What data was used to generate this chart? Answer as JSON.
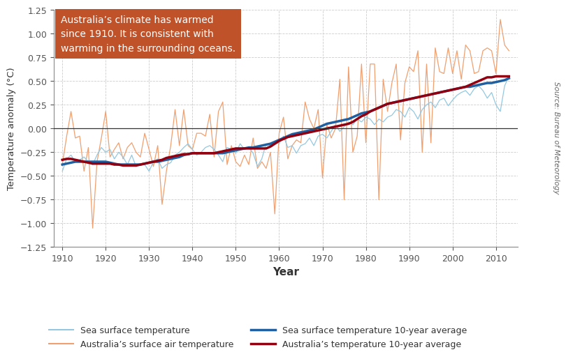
{
  "years": [
    1910,
    1911,
    1912,
    1913,
    1914,
    1915,
    1916,
    1917,
    1918,
    1919,
    1920,
    1921,
    1922,
    1923,
    1924,
    1925,
    1926,
    1927,
    1928,
    1929,
    1930,
    1931,
    1932,
    1933,
    1934,
    1935,
    1936,
    1937,
    1938,
    1939,
    1940,
    1941,
    1942,
    1943,
    1944,
    1945,
    1946,
    1947,
    1948,
    1949,
    1950,
    1951,
    1952,
    1953,
    1954,
    1955,
    1956,
    1957,
    1958,
    1959,
    1960,
    1961,
    1962,
    1963,
    1964,
    1965,
    1966,
    1967,
    1968,
    1969,
    1970,
    1971,
    1972,
    1973,
    1974,
    1975,
    1976,
    1977,
    1978,
    1979,
    1980,
    1981,
    1982,
    1983,
    1984,
    1985,
    1986,
    1987,
    1988,
    1989,
    1990,
    1991,
    1992,
    1993,
    1994,
    1995,
    1996,
    1997,
    1998,
    1999,
    2000,
    2001,
    2002,
    2003,
    2004,
    2005,
    2006,
    2007,
    2008,
    2009,
    2010,
    2011,
    2012,
    2013
  ],
  "sst": [
    -0.45,
    -0.32,
    -0.28,
    -0.35,
    -0.33,
    -0.3,
    -0.35,
    -0.38,
    -0.28,
    -0.2,
    -0.25,
    -0.22,
    -0.32,
    -0.25,
    -0.3,
    -0.38,
    -0.28,
    -0.4,
    -0.38,
    -0.38,
    -0.45,
    -0.35,
    -0.32,
    -0.42,
    -0.38,
    -0.36,
    -0.28,
    -0.25,
    -0.2,
    -0.16,
    -0.22,
    -0.28,
    -0.25,
    -0.2,
    -0.18,
    -0.22,
    -0.28,
    -0.35,
    -0.2,
    -0.22,
    -0.26,
    -0.16,
    -0.22,
    -0.2,
    -0.26,
    -0.4,
    -0.32,
    -0.16,
    -0.18,
    -0.14,
    -0.16,
    -0.08,
    -0.2,
    -0.18,
    -0.26,
    -0.18,
    -0.16,
    -0.1,
    -0.18,
    -0.08,
    -0.06,
    -0.1,
    -0.03,
    0.04,
    -0.03,
    0.02,
    0.07,
    0.04,
    0.1,
    0.07,
    0.12,
    0.1,
    0.04,
    0.1,
    0.07,
    0.12,
    0.14,
    0.2,
    0.18,
    0.12,
    0.22,
    0.18,
    0.1,
    0.2,
    0.25,
    0.28,
    0.22,
    0.3,
    0.32,
    0.24,
    0.3,
    0.35,
    0.38,
    0.4,
    0.35,
    0.42,
    0.45,
    0.4,
    0.32,
    0.38,
    0.25,
    0.18,
    0.45,
    0.55
  ],
  "sst_smooth": [
    -0.38,
    -0.37,
    -0.36,
    -0.35,
    -0.35,
    -0.35,
    -0.35,
    -0.35,
    -0.35,
    -0.35,
    -0.35,
    -0.36,
    -0.37,
    -0.38,
    -0.38,
    -0.38,
    -0.38,
    -0.38,
    -0.38,
    -0.37,
    -0.36,
    -0.35,
    -0.35,
    -0.34,
    -0.33,
    -0.32,
    -0.31,
    -0.3,
    -0.28,
    -0.27,
    -0.26,
    -0.26,
    -0.26,
    -0.26,
    -0.26,
    -0.26,
    -0.26,
    -0.26,
    -0.25,
    -0.24,
    -0.23,
    -0.22,
    -0.21,
    -0.2,
    -0.2,
    -0.19,
    -0.18,
    -0.17,
    -0.16,
    -0.14,
    -0.12,
    -0.1,
    -0.08,
    -0.06,
    -0.05,
    -0.04,
    -0.03,
    -0.02,
    -0.01,
    0.01,
    0.03,
    0.05,
    0.06,
    0.07,
    0.08,
    0.09,
    0.1,
    0.12,
    0.14,
    0.16,
    0.17,
    0.18,
    0.2,
    0.22,
    0.24,
    0.26,
    0.27,
    0.28,
    0.29,
    0.3,
    0.31,
    0.32,
    0.33,
    0.34,
    0.35,
    0.36,
    0.37,
    0.38,
    0.39,
    0.4,
    0.41,
    0.42,
    0.43,
    0.44,
    0.44,
    0.45,
    0.46,
    0.47,
    0.48,
    0.48,
    0.49,
    0.5,
    0.51,
    0.53
  ],
  "aust_temp": [
    -0.38,
    -0.08,
    0.18,
    -0.1,
    -0.08,
    -0.45,
    -0.2,
    -1.05,
    -0.35,
    -0.1,
    0.18,
    -0.3,
    -0.22,
    -0.15,
    -0.32,
    -0.2,
    -0.15,
    -0.25,
    -0.3,
    -0.05,
    -0.22,
    -0.4,
    -0.18,
    -0.8,
    -0.45,
    -0.18,
    0.2,
    -0.18,
    0.2,
    -0.18,
    -0.22,
    -0.05,
    -0.05,
    -0.08,
    0.15,
    -0.3,
    0.18,
    0.28,
    -0.38,
    -0.18,
    -0.35,
    -0.4,
    -0.28,
    -0.38,
    -0.1,
    -0.42,
    -0.35,
    -0.42,
    -0.25,
    -0.9,
    -0.05,
    0.12,
    -0.32,
    -0.18,
    -0.12,
    -0.15,
    0.28,
    0.1,
    0.0,
    0.2,
    -0.52,
    0.05,
    -0.1,
    0.0,
    0.52,
    -0.75,
    0.65,
    -0.25,
    -0.08,
    0.68,
    -0.15,
    0.68,
    0.68,
    -0.75,
    0.52,
    0.18,
    0.48,
    0.68,
    -0.12,
    0.48,
    0.65,
    0.6,
    0.82,
    -0.25,
    0.68,
    -0.15,
    0.85,
    0.6,
    0.58,
    0.85,
    0.58,
    0.82,
    0.52,
    0.88,
    0.82,
    0.58,
    0.6,
    0.82,
    0.85,
    0.82,
    0.58,
    1.15,
    0.88,
    0.82
  ],
  "aust_smooth": [
    -0.33,
    -0.32,
    -0.32,
    -0.33,
    -0.34,
    -0.35,
    -0.36,
    -0.37,
    -0.37,
    -0.37,
    -0.37,
    -0.37,
    -0.38,
    -0.38,
    -0.39,
    -0.39,
    -0.39,
    -0.39,
    -0.38,
    -0.37,
    -0.36,
    -0.35,
    -0.34,
    -0.33,
    -0.31,
    -0.3,
    -0.29,
    -0.28,
    -0.27,
    -0.27,
    -0.26,
    -0.26,
    -0.26,
    -0.26,
    -0.26,
    -0.26,
    -0.25,
    -0.24,
    -0.23,
    -0.22,
    -0.21,
    -0.21,
    -0.21,
    -0.21,
    -0.21,
    -0.21,
    -0.21,
    -0.21,
    -0.19,
    -0.16,
    -0.13,
    -0.11,
    -0.09,
    -0.08,
    -0.07,
    -0.06,
    -0.05,
    -0.04,
    -0.03,
    -0.02,
    -0.01,
    0.0,
    0.01,
    0.02,
    0.03,
    0.04,
    0.05,
    0.07,
    0.1,
    0.13,
    0.15,
    0.18,
    0.2,
    0.22,
    0.24,
    0.26,
    0.27,
    0.28,
    0.29,
    0.3,
    0.31,
    0.32,
    0.33,
    0.34,
    0.35,
    0.36,
    0.37,
    0.38,
    0.39,
    0.4,
    0.41,
    0.42,
    0.43,
    0.44,
    0.46,
    0.48,
    0.5,
    0.52,
    0.54,
    0.54,
    0.55,
    0.55,
    0.55,
    0.55
  ],
  "ylim": [
    -1.25,
    1.25
  ],
  "xlim": [
    1908,
    2015
  ],
  "xticks": [
    1910,
    1920,
    1930,
    1940,
    1950,
    1960,
    1970,
    1980,
    1990,
    2000,
    2010
  ],
  "yticks": [
    -1.25,
    -1.0,
    -0.75,
    -0.5,
    -0.25,
    0.0,
    0.25,
    0.5,
    0.75,
    1.0,
    1.25
  ],
  "xlabel": "Year",
  "ylabel": "Temperature anomaly (°C)",
  "annotation_text": "Australia’s climate has warmed\nsince 1910. It is consistent with\nwarming in the surrounding oceans.",
  "annotation_bg_color": "#c0522a",
  "annotation_text_color": "#ffffff",
  "sst_color": "#94c8e0",
  "sst_smooth_color": "#2060a0",
  "aust_color": "#f0a070",
  "aust_smooth_color": "#900010",
  "grid_color": "#cccccc",
  "source_text": "Source: Bureau of Meteorology",
  "legend_labels": [
    "Sea surface temperature",
    "Sea surface temperature 10-year average",
    "Australia’s surface air temperature",
    "Australia’s temperature 10-year average"
  ]
}
